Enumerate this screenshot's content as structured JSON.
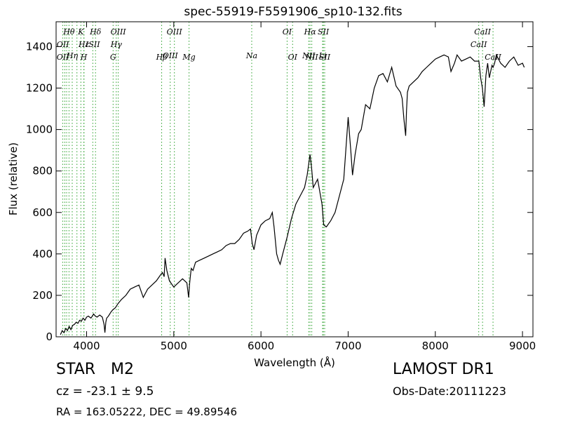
{
  "chart_data": {
    "type": "line",
    "title": "spec-55919-F5591906_sp10-132.fits",
    "xlabel": "Wavelength (Å)",
    "ylabel": "Flux (relative)",
    "xlim": [
      3650,
      9120
    ],
    "ylim": [
      0,
      1520
    ],
    "xticks": [
      4000,
      5000,
      6000,
      7000,
      8000,
      9000
    ],
    "yticks": [
      0,
      200,
      400,
      600,
      800,
      1000,
      1200,
      1400
    ],
    "grid": false,
    "line_color": "#000000",
    "marker_color": "#2ca02c",
    "series": [
      {
        "x": [
          3700,
          3720,
          3740,
          3760,
          3780,
          3800,
          3820,
          3840,
          3860,
          3880,
          3900,
          3920,
          3940,
          3960,
          3980,
          4000,
          4020,
          4050,
          4080,
          4100,
          4120,
          4150,
          4180,
          4200,
          4210,
          4220,
          4230,
          4250,
          4280,
          4300,
          4330,
          4360,
          4400,
          4450,
          4500,
          4550,
          4600,
          4650,
          4700,
          4750,
          4800,
          4850,
          4870,
          4890,
          4900,
          4920,
          4950,
          5000,
          5050,
          5100,
          5150,
          5170,
          5180,
          5190,
          5200,
          5220,
          5250,
          5300,
          5350,
          5400,
          5450,
          5500,
          5550,
          5600,
          5650,
          5700,
          5750,
          5800,
          5850,
          5880,
          5900,
          5920,
          5950,
          6000,
          6050,
          6100,
          6130,
          6150,
          6180,
          6200,
          6220,
          6250,
          6300,
          6350,
          6400,
          6450,
          6500,
          6530,
          6550,
          6563,
          6580,
          6600,
          6650,
          6700,
          6720,
          6750,
          6800,
          6850,
          6900,
          6950,
          7000,
          7030,
          7050,
          7080,
          7120,
          7150,
          7200,
          7250,
          7300,
          7350,
          7400,
          7450,
          7500,
          7550,
          7600,
          7620,
          7640,
          7660,
          7670,
          7680,
          7700,
          7750,
          7800,
          7850,
          7900,
          7950,
          8000,
          8050,
          8100,
          8150,
          8180,
          8200,
          8220,
          8250,
          8300,
          8350,
          8400,
          8450,
          8500,
          8520,
          8540,
          8560,
          8580,
          8600,
          8620,
          8650,
          8662,
          8680,
          8700,
          8750,
          8800,
          8850,
          8900,
          8950,
          9000,
          9020
        ],
        "y": [
          10,
          30,
          20,
          40,
          30,
          50,
          35,
          55,
          60,
          70,
          65,
          80,
          75,
          90,
          80,
          95,
          100,
          90,
          110,
          100,
          95,
          105,
          95,
          60,
          20,
          70,
          90,
          100,
          120,
          130,
          140,
          160,
          180,
          200,
          230,
          240,
          250,
          190,
          230,
          250,
          270,
          300,
          310,
          290,
          380,
          320,
          270,
          240,
          260,
          280,
          260,
          190,
          250,
          290,
          330,
          320,
          360,
          370,
          380,
          390,
          400,
          410,
          420,
          440,
          450,
          450,
          470,
          500,
          510,
          520,
          450,
          420,
          490,
          540,
          560,
          570,
          600,
          530,
          400,
          370,
          350,
          400,
          480,
          570,
          640,
          680,
          720,
          780,
          840,
          880,
          820,
          720,
          760,
          640,
          540,
          530,
          560,
          600,
          680,
          760,
          1060,
          900,
          780,
          880,
          980,
          1000,
          1120,
          1100,
          1200,
          1260,
          1270,
          1230,
          1300,
          1210,
          1180,
          1150,
          1050,
          970,
          1090,
          1180,
          1210,
          1230,
          1250,
          1280,
          1300,
          1320,
          1340,
          1350,
          1360,
          1350,
          1280,
          1300,
          1320,
          1360,
          1330,
          1340,
          1350,
          1330,
          1330,
          1250,
          1200,
          1110,
          1260,
          1320,
          1250,
          1310,
          1300,
          1320,
          1360,
          1320,
          1300,
          1330,
          1350,
          1310,
          1320,
          1300
        ]
      }
    ],
    "lines_top": [
      {
        "name": "Hθ",
        "x": 3798,
        "row": 0
      },
      {
        "name": "OII",
        "x": 3727,
        "row": 1
      },
      {
        "name": "Hη",
        "x": 3835,
        "row": 2
      },
      {
        "name": "OII",
        "x": 3727,
        "row": 3
      },
      {
        "name": "K",
        "x": 3934,
        "row": 0
      },
      {
        "name": "Hε",
        "x": 3970,
        "row": 1
      },
      {
        "name": "ISII",
        "x": 4071,
        "row": 1
      },
      {
        "name": "H",
        "x": 3968,
        "row": 3
      },
      {
        "name": "Hδ",
        "x": 4102,
        "row": 0
      },
      {
        "name": "OIII",
        "x": 4363,
        "row": 0
      },
      {
        "name": "Hγ",
        "x": 4340,
        "row": 1
      },
      {
        "name": "G",
        "x": 4304,
        "row": 3
      },
      {
        "name": "OIII",
        "x": 5007,
        "row": 0
      },
      {
        "name": "OIII",
        "x": 4959,
        "row": 2
      },
      {
        "name": "Hβ",
        "x": 4861,
        "row": 3
      },
      {
        "name": "Mg",
        "x": 5175,
        "row": 3
      },
      {
        "name": "Na",
        "x": 5894,
        "row": 2
      },
      {
        "name": "OI",
        "x": 6300,
        "row": 0
      },
      {
        "name": "OI",
        "x": 6363,
        "row": 3
      },
      {
        "name": "Hα",
        "x": 6563,
        "row": 0
      },
      {
        "name": "SII",
        "x": 6716,
        "row": 0
      },
      {
        "name": "NII",
        "x": 6548,
        "row": 2
      },
      {
        "name": "Li",
        "x": 6707,
        "row": 2
      },
      {
        "name": "NII",
        "x": 6583,
        "row": 3
      },
      {
        "name": "SII",
        "x": 6731,
        "row": 3
      },
      {
        "name": "CaII",
        "x": 8542,
        "row": 0
      },
      {
        "name": "CaII",
        "x": 8498,
        "row": 1
      },
      {
        "name": "CaII",
        "x": 8662,
        "row": 3
      }
    ],
    "line_positions": [
      3727,
      3750,
      3771,
      3798,
      3835,
      3889,
      3934,
      3968,
      3970,
      4071,
      4102,
      4304,
      4340,
      4363,
      4861,
      4959,
      5007,
      5175,
      5894,
      6300,
      6363,
      6548,
      6563,
      6583,
      6707,
      6716,
      6731,
      8498,
      8542,
      8662
    ]
  },
  "footer": {
    "class_label": "STAR",
    "subclass_label": "M2",
    "cz": "cz = -23.1 ± 9.5",
    "coords": "RA = 163.05222, DEC = 49.89546",
    "survey": "LAMOST DR1",
    "obs_date": "Obs-Date:20111223"
  }
}
